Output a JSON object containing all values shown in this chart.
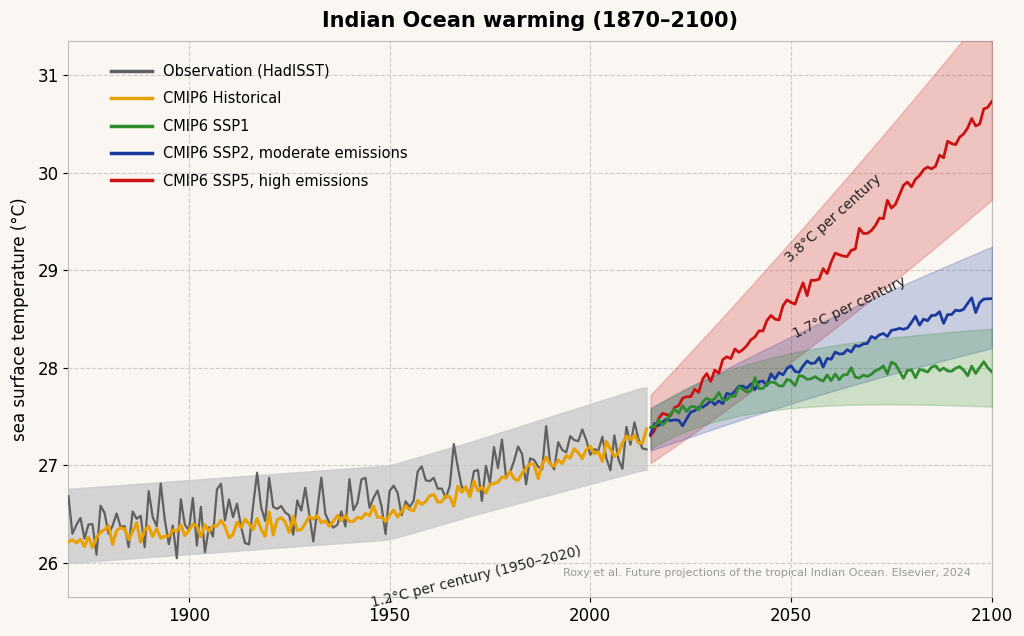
{
  "title": "Indian Ocean warming (1870–2100)",
  "ylabel": "sea surface temperature (°C)",
  "xlim": [
    1870,
    2100
  ],
  "ylim": [
    25.65,
    31.35
  ],
  "yticks": [
    26,
    27,
    28,
    29,
    30,
    31
  ],
  "xticks": [
    1900,
    1950,
    2000,
    2050,
    2100
  ],
  "background_color": "#faf7f2",
  "grid_color": "#bbbbbb",
  "obs_color": "#606060",
  "obs_band_color": "#c8c8c8",
  "hist_color": "#e8a000",
  "ssp1_color": "#2e8b2e",
  "ssp2_color": "#1a3a9e",
  "ssp5_color": "#cc1111",
  "ssp1_band_color": "#90ee90",
  "ssp2_band_color": "#8aaedd",
  "ssp5_band_color": "#e8aaaa",
  "annotation_color": "#222222",
  "citation_plain": "Roxy et al. Future projections of the tropical Indian Ocean. ",
  "citation_italic": "Elsevier",
  "citation_end": ", 2024",
  "legend_entries": [
    "Observation (HadISST)",
    "CMIP6 Historical",
    "CMIP6 SSP1",
    "CMIP6 SSP2, moderate emissions",
    "CMIP6 SSP5, high emissions"
  ]
}
